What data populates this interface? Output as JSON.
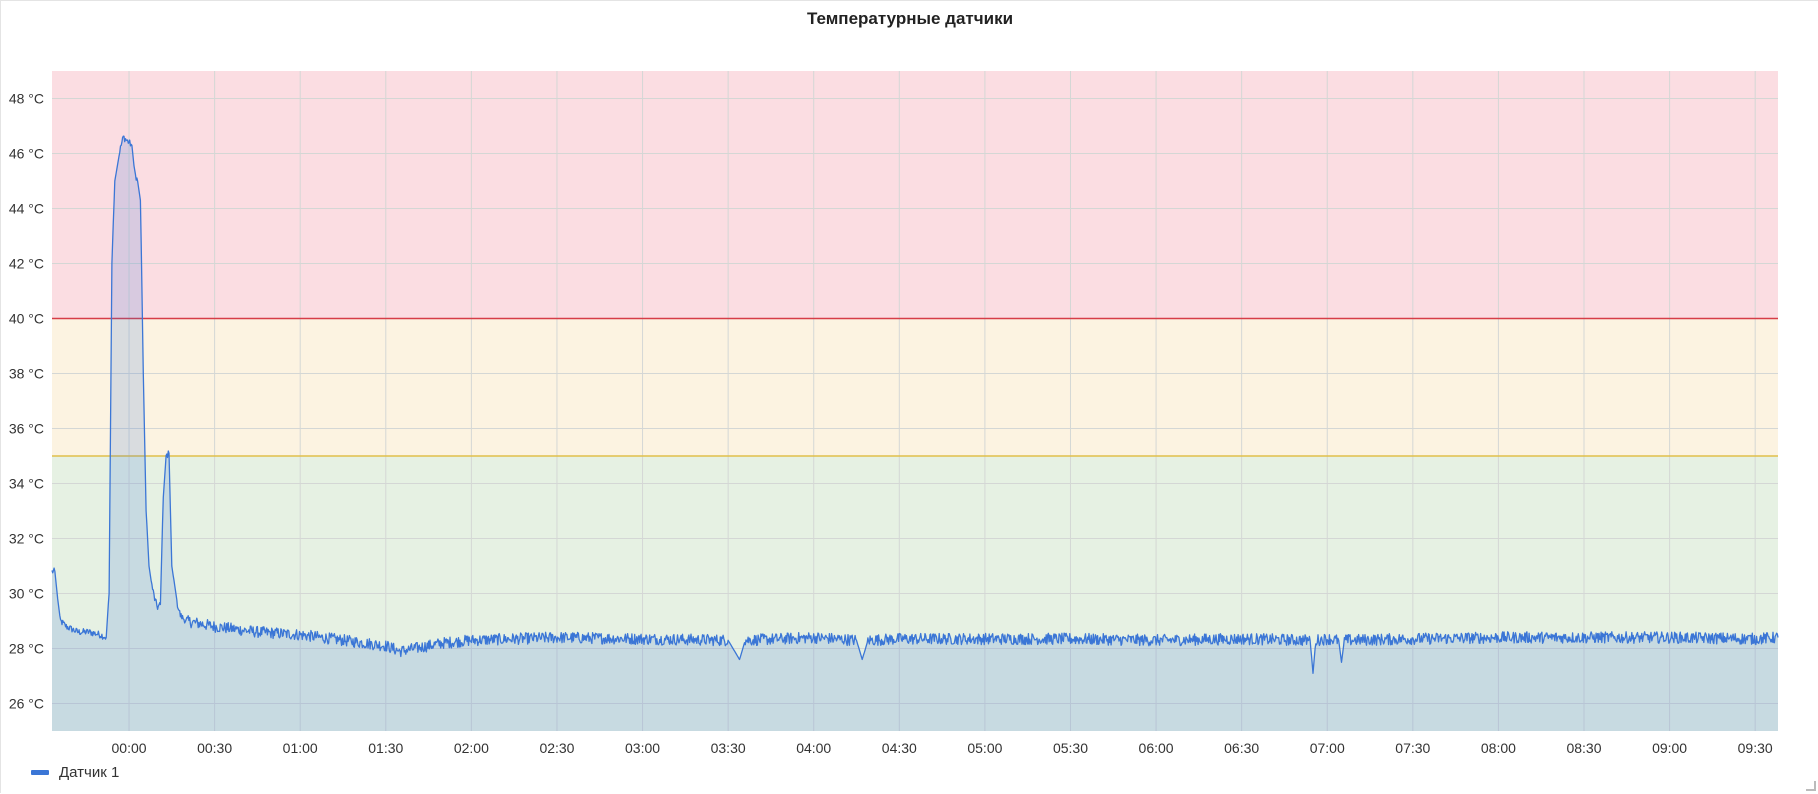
{
  "panel": {
    "title": "Температурные датчики"
  },
  "chart_data": {
    "type": "line",
    "title": "Температурные датчики",
    "xlabel": "",
    "ylabel": "",
    "x_range": [
      "23:33",
      "09:38"
    ],
    "ylim": [
      25,
      49
    ],
    "y_unit": "°C",
    "y_ticks": [
      26,
      28,
      30,
      32,
      34,
      36,
      38,
      40,
      42,
      44,
      46,
      48
    ],
    "x_ticks": [
      "00:00",
      "00:30",
      "01:00",
      "01:30",
      "02:00",
      "02:30",
      "03:00",
      "03:30",
      "04:00",
      "04:30",
      "05:00",
      "05:30",
      "06:00",
      "06:30",
      "07:00",
      "07:30",
      "08:00",
      "08:30",
      "09:00",
      "09:30"
    ],
    "grid": true,
    "thresholds": [
      {
        "value": 40,
        "color": "#d63d48",
        "band_from": 40,
        "band_to": 49,
        "band_color": "#fbdde2"
      },
      {
        "value": 35,
        "color": "#e0c04a",
        "band_from": 35,
        "band_to": 40,
        "band_color": "#fcf3e1"
      },
      {
        "band_from": 25,
        "band_to": 35,
        "band_color": "#e6f1e3"
      }
    ],
    "series": [
      {
        "name": "Датчик 1",
        "color": "#3b76d6",
        "fill": true,
        "points": [
          [
            "23:33",
            30.8
          ],
          [
            "23:34",
            30.8
          ],
          [
            "23:35",
            29.8
          ],
          [
            "23:36",
            29.0
          ],
          [
            "23:38",
            28.8
          ],
          [
            "23:42",
            28.6
          ],
          [
            "23:46",
            28.6
          ],
          [
            "23:50",
            28.5
          ],
          [
            "23:52",
            28.4
          ],
          [
            "23:53",
            30.0
          ],
          [
            "23:54",
            42.0
          ],
          [
            "23:55",
            45.0
          ],
          [
            "23:57",
            46.2
          ],
          [
            "23:58",
            46.6
          ],
          [
            "00:00",
            46.4
          ],
          [
            "00:01",
            46.3
          ],
          [
            "00:02",
            45.3
          ],
          [
            "00:03",
            45.0
          ],
          [
            "00:04",
            44.3
          ],
          [
            "00:05",
            38.0
          ],
          [
            "00:06",
            33.0
          ],
          [
            "00:07",
            31.0
          ],
          [
            "00:08",
            30.3
          ],
          [
            "00:09",
            29.8
          ],
          [
            "00:10",
            29.5
          ],
          [
            "00:11",
            29.6
          ],
          [
            "00:12",
            33.5
          ],
          [
            "00:13",
            35.0
          ],
          [
            "00:14",
            35.1
          ],
          [
            "00:15",
            31.0
          ],
          [
            "00:16",
            30.3
          ],
          [
            "00:17",
            29.6
          ],
          [
            "00:18",
            29.2
          ],
          [
            "00:20",
            29.0
          ],
          [
            "00:30",
            28.8
          ],
          [
            "00:45",
            28.6
          ],
          [
            "01:00",
            28.5
          ],
          [
            "01:15",
            28.3
          ],
          [
            "01:30",
            28.1
          ],
          [
            "01:35",
            27.9
          ],
          [
            "01:40",
            28.0
          ],
          [
            "01:50",
            28.2
          ],
          [
            "02:00",
            28.3
          ],
          [
            "02:30",
            28.4
          ],
          [
            "03:00",
            28.35
          ],
          [
            "03:30",
            28.3
          ],
          [
            "03:34",
            27.6
          ],
          [
            "03:36",
            28.3
          ],
          [
            "04:00",
            28.4
          ],
          [
            "04:15",
            28.3
          ],
          [
            "04:17",
            27.6
          ],
          [
            "04:19",
            28.3
          ],
          [
            "04:30",
            28.35
          ],
          [
            "05:00",
            28.35
          ],
          [
            "05:30",
            28.35
          ],
          [
            "06:00",
            28.3
          ],
          [
            "06:30",
            28.35
          ],
          [
            "06:54",
            28.3
          ],
          [
            "06:55",
            27.1
          ],
          [
            "06:56",
            28.3
          ],
          [
            "07:00",
            28.35
          ],
          [
            "07:04",
            28.3
          ],
          [
            "07:05",
            27.5
          ],
          [
            "07:06",
            28.3
          ],
          [
            "07:30",
            28.35
          ],
          [
            "08:00",
            28.4
          ],
          [
            "08:30",
            28.4
          ],
          [
            "09:00",
            28.4
          ],
          [
            "09:30",
            28.35
          ],
          [
            "09:38",
            28.4
          ]
        ]
      }
    ]
  },
  "legend": {
    "label": "Датчик 1",
    "color": "#3b76d6"
  },
  "colors": {
    "grid": "#d4d7d5",
    "axis_text": "#333333",
    "series_fill": "#c9dce3"
  }
}
